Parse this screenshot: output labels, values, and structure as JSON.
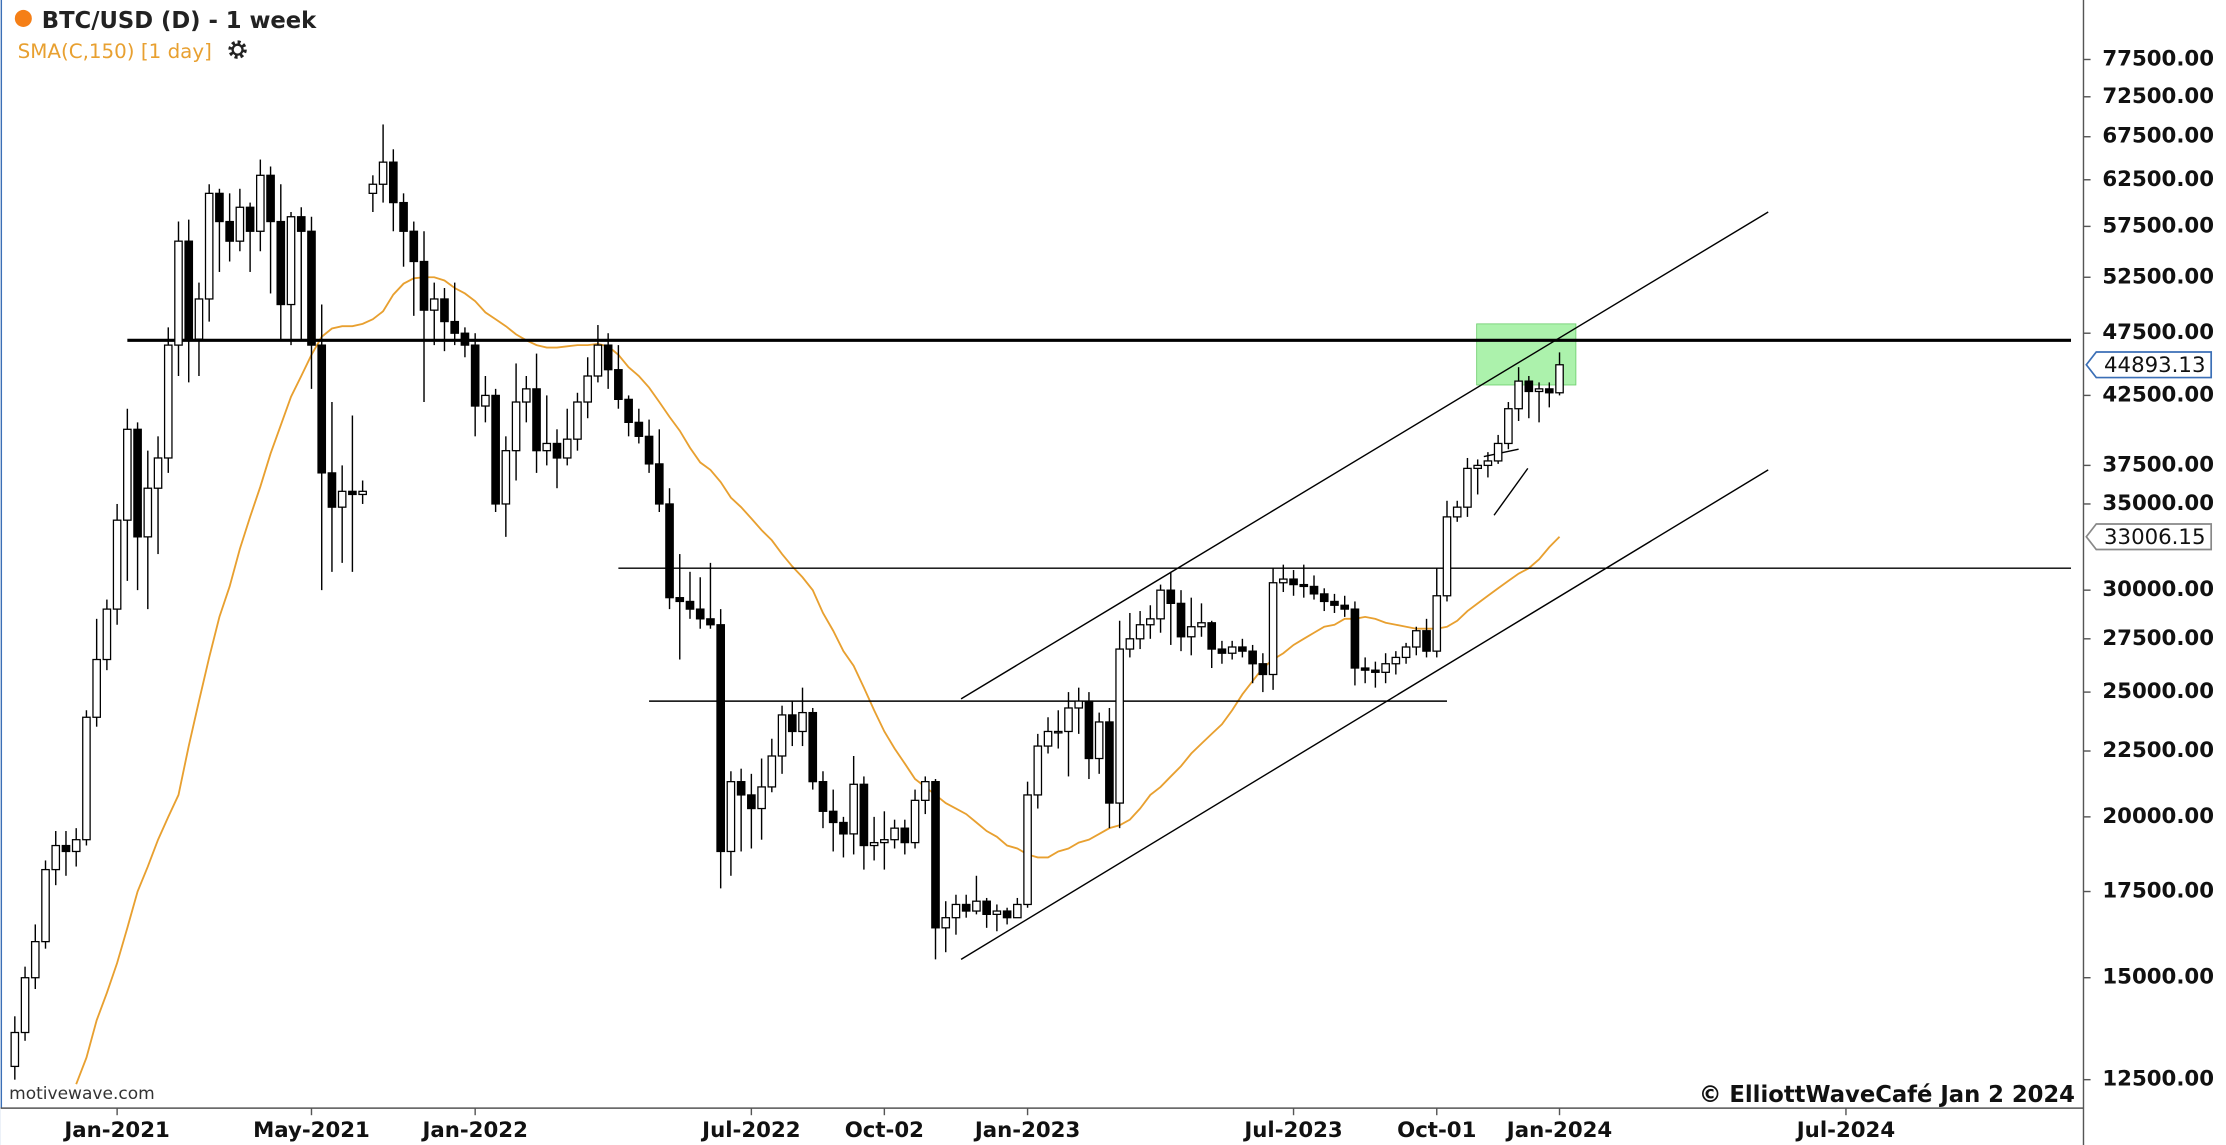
{
  "chart_data": {
    "type": "candlestick",
    "title": "BTC/USD (D) - 1 week",
    "watermark": "motivewave.com",
    "copyright": "© ElliottWaveCafé Jan 2 2024",
    "log_scale": true,
    "grid": false,
    "up_color": "#ffffff",
    "down_color": "#000000",
    "categories": [
      null,
      null,
      null,
      null,
      null,
      null,
      null,
      null,
      null,
      null,
      "Jan-2021",
      null,
      null,
      null,
      null,
      null,
      null,
      null,
      null,
      null,
      null,
      null,
      null,
      null,
      null,
      null,
      null,
      null,
      null,
      "May-2021",
      null,
      null,
      null,
      null,
      null,
      null,
      null,
      null,
      null,
      null,
      null,
      null,
      null,
      null,
      null,
      "Jan-2022",
      null,
      null,
      null,
      null,
      null,
      null,
      null,
      null,
      null,
      null,
      null,
      null,
      null,
      null,
      null,
      null,
      null,
      null,
      null,
      null,
      null,
      null,
      null,
      null,
      null,
      null,
      "Jul-2022",
      null,
      null,
      null,
      null,
      null,
      null,
      null,
      null,
      null,
      null,
      null,
      null,
      "Oct-02",
      null,
      null,
      null,
      null,
      null,
      null,
      null,
      null,
      null,
      null,
      null,
      null,
      null,
      "Jan-2023",
      null,
      null,
      null,
      null,
      null,
      null,
      null,
      null,
      null,
      null,
      null,
      null,
      null,
      null,
      null,
      null,
      null,
      null,
      null,
      null,
      null,
      null,
      null,
      null,
      null,
      "Jul-2023",
      null,
      null,
      null,
      null,
      null,
      null,
      null,
      null,
      null,
      null,
      null,
      null,
      null,
      "Oct-01",
      null,
      null,
      null,
      null,
      null,
      null,
      null,
      null,
      null,
      null,
      null,
      "Jan-2024",
      null,
      null,
      null,
      null,
      null,
      null,
      null,
      null,
      null,
      null,
      null,
      null,
      null,
      null,
      null,
      null,
      null,
      null,
      null,
      null,
      null,
      null,
      null,
      null,
      null,
      null,
      null,
      "Jul-2024"
    ],
    "open": [
      12800,
      13600,
      15000,
      16000,
      18200,
      19000,
      18800,
      19200,
      23900,
      26500,
      29000,
      34000,
      40000,
      33000,
      36000,
      38000,
      46500,
      56000,
      47000,
      50500,
      61000,
      58000,
      56000,
      59500,
      57000,
      63000,
      58000,
      50000,
      58500,
      57000,
      46500,
      37000,
      34800,
      35800,
      35600,
      61000,
      62000,
      64500,
      60000,
      57000,
      54000,
      49500,
      50500,
      48500,
      47500,
      46500,
      41700,
      42500,
      35000,
      38500,
      42000,
      43000,
      38500,
      39000,
      38000,
      39300,
      42000,
      44000,
      46500,
      44500,
      42200,
      40500,
      39500,
      37600,
      35000,
      29600,
      29400,
      29000,
      28500,
      28200,
      18800,
      21300,
      20800,
      20300,
      21100,
      22300,
      24000,
      23300,
      24100,
      21300,
      20200,
      19800,
      19400,
      21200,
      19000,
      19100,
      19200,
      19600,
      19100,
      20600,
      21300,
      16400,
      16700,
      17100,
      16900,
      17200,
      16800,
      16900,
      16700,
      17100,
      20800,
      22700,
      23300,
      23300,
      24300,
      24600,
      22200,
      23700,
      20500,
      27000,
      27500,
      28200,
      28500,
      30000,
      29300,
      27600,
      28100,
      28300,
      27000,
      26800,
      27100,
      26900,
      26300,
      25800,
      30400,
      30600,
      30300,
      30200,
      29800,
      29400,
      29200,
      29000,
      26100,
      26000,
      25900,
      26300,
      26600,
      27100,
      27900,
      26900,
      29700,
      34200,
      34800,
      37300,
      37500,
      37800,
      39000,
      41500,
      43600,
      42800,
      43000,
      42700,
      null,
      null,
      null,
      null,
      null,
      null,
      null,
      null,
      null,
      null,
      null,
      null,
      null,
      null,
      null,
      null,
      null,
      null,
      null,
      null,
      null,
      null,
      null,
      null,
      null,
      null,
      null,
      null
    ],
    "high": [
      14000,
      15300,
      16500,
      18500,
      19500,
      19500,
      19600,
      24200,
      28500,
      29500,
      35000,
      41500,
      40500,
      38500,
      39500,
      48000,
      58000,
      58200,
      52000,
      62000,
      61500,
      61000,
      61500,
      60000,
      64800,
      64000,
      62000,
      59000,
      59500,
      58500,
      50000,
      42000,
      37500,
      41000,
      36500,
      63000,
      69000,
      66000,
      61000,
      58000,
      57000,
      52000,
      51500,
      52000,
      48000,
      47500,
      44000,
      43000,
      39500,
      45000,
      44000,
      45800,
      42500,
      40000,
      41500,
      42700,
      45500,
      48200,
      47500,
      46500,
      42500,
      41500,
      40700,
      40000,
      36000,
      32000,
      31000,
      30700,
      31500,
      29000,
      21700,
      21800,
      21600,
      22200,
      23000,
      24400,
      24600,
      25200,
      24300,
      21700,
      21000,
      20000,
      22300,
      21500,
      20000,
      20200,
      19900,
      19900,
      21000,
      21500,
      21400,
      17200,
      17400,
      17400,
      18000,
      17300,
      17100,
      17000,
      17300,
      21300,
      23200,
      23900,
      24200,
      25000,
      25200,
      25000,
      24100,
      24300,
      28400,
      28800,
      28900,
      29200,
      30300,
      31000,
      30000,
      29600,
      29300,
      28400,
      27400,
      27400,
      27500,
      27200,
      26800,
      31200,
      31400,
      31100,
      31400,
      30800,
      30100,
      29800,
      29700,
      29400,
      26600,
      26400,
      26800,
      26900,
      27300,
      28100,
      28500,
      31200,
      35200,
      35200,
      38000,
      37900,
      38400,
      39600,
      42000,
      44700,
      44000,
      43500,
      43500,
      45900,
      null,
      null,
      null,
      null,
      null,
      null,
      null,
      null,
      null,
      null,
      null,
      null,
      null,
      null,
      null,
      null,
      null,
      null,
      null,
      null,
      null,
      null,
      null,
      null,
      null,
      null,
      null,
      null
    ],
    "low": [
      12500,
      13400,
      14700,
      15800,
      17700,
      18000,
      18300,
      19000,
      23500,
      26000,
      28200,
      30500,
      30000,
      29000,
      32000,
      37000,
      44000,
      43500,
      44000,
      48500,
      53000,
      54000,
      55000,
      53000,
      55000,
      51000,
      47000,
      46500,
      47000,
      43000,
      30000,
      31000,
      31500,
      31000,
      35000,
      59000,
      60000,
      57000,
      53500,
      49000,
      42000,
      46500,
      46000,
      46500,
      45500,
      39500,
      40500,
      34500,
      33000,
      36500,
      40500,
      37000,
      37500,
      36000,
      37500,
      38500,
      40800,
      43500,
      43000,
      41500,
      39500,
      39000,
      37000,
      34500,
      29000,
      26500,
      28500,
      28000,
      28000,
      17600,
      18000,
      18800,
      18900,
      19200,
      20900,
      21600,
      22700,
      22700,
      21000,
      19600,
      18800,
      18600,
      18700,
      18200,
      18500,
      18200,
      18900,
      18700,
      18900,
      20100,
      15500,
      15700,
      16200,
      16700,
      16800,
      16400,
      16300,
      16500,
      16700,
      17000,
      20300,
      22400,
      22600,
      21500,
      23200,
      21400,
      21600,
      19600,
      19600,
      26600,
      27000,
      27500,
      27800,
      27200,
      26900,
      26700,
      27600,
      26100,
      26300,
      26500,
      26600,
      25400,
      25000,
      25100,
      29900,
      29700,
      29600,
      29500,
      28900,
      28800,
      28600,
      25300,
      25400,
      25200,
      25400,
      25800,
      26300,
      26700,
      26600,
      26600,
      29400,
      33900,
      34200,
      35600,
      36700,
      37600,
      38600,
      40600,
      40800,
      40500,
      41600,
      42500,
      null,
      null,
      null,
      null,
      null,
      null,
      null,
      null,
      null,
      null,
      null,
      null,
      null,
      null,
      null,
      null,
      null,
      null,
      null,
      null,
      null,
      null,
      null,
      null,
      null,
      null,
      null,
      null
    ],
    "close": [
      13600,
      15000,
      16000,
      18200,
      19000,
      18800,
      19200,
      23900,
      26500,
      29000,
      34000,
      40000,
      33000,
      36000,
      38000,
      46500,
      56000,
      47000,
      50500,
      61000,
      58000,
      56000,
      59500,
      57000,
      63000,
      58000,
      50000,
      58500,
      57000,
      46500,
      37000,
      34800,
      35800,
      35600,
      35800,
      62000,
      64500,
      60000,
      57000,
      54000,
      49500,
      50500,
      48500,
      47500,
      46500,
      41700,
      42500,
      35000,
      38500,
      42000,
      43000,
      38500,
      39000,
      38000,
      39300,
      42000,
      44000,
      46500,
      44500,
      42200,
      40500,
      39500,
      37600,
      35000,
      29600,
      29400,
      29000,
      28500,
      28200,
      18800,
      21300,
      20800,
      20300,
      21100,
      22300,
      24000,
      23300,
      24100,
      21300,
      20200,
      19800,
      19400,
      21200,
      19000,
      19100,
      19200,
      19600,
      19100,
      20600,
      21300,
      16400,
      16700,
      17100,
      16900,
      17200,
      16800,
      16900,
      16700,
      17100,
      20800,
      22700,
      23300,
      23300,
      24300,
      24600,
      22200,
      23700,
      20500,
      27000,
      27500,
      28200,
      28500,
      30000,
      29300,
      27600,
      28100,
      28300,
      27000,
      26800,
      27100,
      26900,
      26300,
      25800,
      30400,
      30600,
      30300,
      30200,
      29800,
      29400,
      29200,
      29000,
      26100,
      26000,
      25900,
      26300,
      26600,
      27100,
      27900,
      26900,
      29700,
      34200,
      34800,
      37300,
      37500,
      37800,
      39000,
      41500,
      43600,
      42800,
      43000,
      42700,
      44893.13,
      null,
      null,
      null,
      null,
      null,
      null,
      null,
      null,
      null,
      null,
      null,
      null,
      null,
      null,
      null,
      null,
      null,
      null,
      null,
      null,
      null,
      null,
      null,
      null,
      null,
      null,
      null,
      null
    ],
    "series": [
      {
        "name": "SMA(C,150) [1 day]",
        "color": "#e8a030",
        "values": [
          null,
          null,
          null,
          null,
          null,
          null,
          12400,
          13000,
          13900,
          14600,
          15400,
          16400,
          17500,
          18300,
          19200,
          20000,
          20800,
          22700,
          24600,
          26600,
          28600,
          30200,
          32300,
          34200,
          36100,
          38300,
          40300,
          42400,
          44000,
          45700,
          47200,
          47900,
          48100,
          48100,
          48300,
          48700,
          49400,
          50900,
          51900,
          52400,
          52500,
          52500,
          52200,
          51500,
          51000,
          50300,
          49300,
          48700,
          48100,
          47400,
          46900,
          46500,
          46300,
          46300,
          46400,
          46500,
          46500,
          46600,
          46400,
          45700,
          44700,
          44000,
          43100,
          42000,
          40900,
          39900,
          38700,
          37700,
          37200,
          36400,
          35400,
          34800,
          34100,
          33400,
          32800,
          32000,
          31300,
          30700,
          30000,
          28800,
          27900,
          26900,
          26200,
          25200,
          24200,
          23300,
          22600,
          22000,
          21400,
          21100,
          20800,
          20500,
          20300,
          20100,
          19800,
          19500,
          19300,
          19000,
          18900,
          18700,
          18600,
          18600,
          18800,
          18900,
          19100,
          19200,
          19400,
          19600,
          19700,
          19900,
          20300,
          20800,
          21100,
          21500,
          21900,
          22400,
          22800,
          23200,
          23600,
          24200,
          24900,
          25500,
          26100,
          26500,
          26800,
          27200,
          27500,
          27800,
          28100,
          28200,
          28500,
          28500,
          28600,
          28500,
          28300,
          28200,
          28100,
          28000,
          28000,
          28000,
          28100,
          28400,
          28900,
          29300,
          29700,
          30100,
          30500,
          30900,
          31200,
          31700,
          32400,
          33006.15,
          null,
          null,
          null,
          null,
          null,
          null,
          null,
          null,
          null,
          null,
          null,
          null,
          null,
          null,
          null,
          null,
          null,
          null,
          null,
          null,
          null,
          null,
          null,
          null,
          null,
          null,
          null,
          null
        ]
      }
    ],
    "ylim": [
      11880,
      86200
    ],
    "yticks": [
      {
        "value": 12500,
        "label": "12500.00"
      },
      {
        "value": 15000,
        "label": "15000.00"
      },
      {
        "value": 17500,
        "label": "17500.00"
      },
      {
        "value": 20000,
        "label": "20000.00"
      },
      {
        "value": 22500,
        "label": "22500.00"
      },
      {
        "value": 25000,
        "label": "25000.00"
      },
      {
        "value": 27500,
        "label": "27500.00"
      },
      {
        "value": 30000,
        "label": "30000.00"
      },
      {
        "value": 35000,
        "label": "35000.00"
      },
      {
        "value": 37500,
        "label": "37500.00"
      },
      {
        "value": 42500,
        "label": "42500.00"
      },
      {
        "value": 47500,
        "label": "47500.00"
      },
      {
        "value": 52500,
        "label": "52500.00"
      },
      {
        "value": 57500,
        "label": "57500.00"
      },
      {
        "value": 62500,
        "label": "62500.00"
      },
      {
        "value": 67500,
        "label": "67500.00"
      },
      {
        "value": 72500,
        "label": "72500.00"
      },
      {
        "value": 77500,
        "label": "77500.00"
      }
    ],
    "trendlines": [
      {
        "from": [
          11,
          46900
        ],
        "to": [
          201,
          46900
        ],
        "thick": true
      },
      {
        "from": [
          59,
          31200
        ],
        "to": [
          201,
          31200
        ]
      },
      {
        "from": [
          62,
          24600
        ],
        "to": [
          140,
          24600
        ]
      },
      {
        "from": [
          92.5,
          24700
        ],
        "to": [
          171.4,
          59000
        ]
      },
      {
        "from": [
          92.5,
          15500
        ],
        "to": [
          171.4,
          37200
        ]
      },
      {
        "from": [
          143.6,
          38100
        ],
        "to": [
          147,
          38600
        ]
      },
      {
        "from": [
          144.6,
          34300
        ],
        "to": [
          147.9,
          37300
        ]
      }
    ],
    "zone": {
      "from": [
        142.9,
        48300
      ],
      "to": [
        152.6,
        43300
      ],
      "color": "#90ee90"
    }
  }
}
